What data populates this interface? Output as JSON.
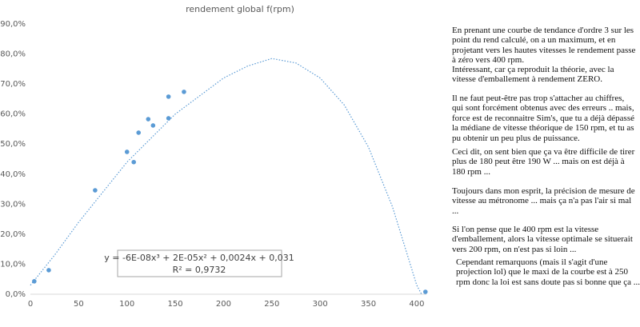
{
  "chart_data": {
    "type": "scatter",
    "title": "rendement global  f(rpm)",
    "xlim": [
      0,
      410
    ],
    "ylim": [
      0,
      90
    ],
    "xticks": [
      0,
      50,
      100,
      150,
      200,
      250,
      300,
      350,
      400
    ],
    "yticks": [
      {
        "value": 0,
        "label": "0,0%"
      },
      {
        "value": 10,
        "label": "10,0%"
      },
      {
        "value": 20,
        "label": "20,0%"
      },
      {
        "value": 30,
        "label": "30,0%"
      },
      {
        "value": 40,
        "label": "40,0%"
      },
      {
        "value": 50,
        "label": "50,0%"
      },
      {
        "value": 60,
        "label": "60,0%"
      },
      {
        "value": 70,
        "label": "70,0%"
      },
      {
        "value": 80,
        "label": "80,0%"
      },
      {
        "value": 90,
        "label": "90,0%"
      }
    ],
    "series": [
      {
        "color": "#5b9bd5",
        "x": [
          4,
          19,
          67,
          100,
          107,
          112,
          122,
          127,
          143,
          143,
          159,
          409
        ],
        "values": [
          4.3,
          8,
          34.6,
          47.4,
          44,
          53.8,
          58.3,
          56.2,
          65.8,
          58.6,
          67.4,
          0.8
        ]
      },
      {
        "color": "#5b9bd5",
        "style": "dotted",
        "x": [
          0,
          25,
          50,
          75,
          100,
          125,
          150,
          175,
          200,
          225,
          250,
          275,
          300,
          325,
          350,
          375,
          400,
          405
        ],
        "values": [
          3,
          13,
          24,
          34,
          44,
          52,
          60,
          66,
          72,
          76,
          78.5,
          77,
          72,
          63,
          49,
          29,
          3,
          0
        ]
      }
    ],
    "annotations": [
      "y = -6E-08x³ + 2E-05x² + 0,0024x + 0,031",
      "R² = 0,9732"
    ]
  },
  "side_text": {
    "paragraphs": [
      "En prenant une courbe de tendance d'ordre 3 sur les point du rend calculé, on a un maximum, et en projetant vers les hautes vitesses le rendement passe à zéro vers 400 rpm.",
      "Intéressant, car ça reproduit la théorie, avec la vitesse d'emballement à rendement ZERO.",
      "Il ne faut peut-être pas trop s'attacher au chiffres, qui sont forcément obtenus avec des erreurs .. mais, force est de reconnaitre Sim's, que tu a déjà dépassé la médiane de vitesse théorique de 150 rpm, et tu as pu obtenir un peu plus de puissance.",
      "Ceci dit, on sent bien que ça va être difficile de tirer plus de 180 peut être 190 W ... mais on est déjà à 180 rpm ...",
      "Toujours dans mon esprit, la précision de mesure de vitesse au métronome ... mais ça n'a pas l'air si mal ...",
      "Si l'on pense que le 400 rpm est la vitesse d'emballement, alors la vitesse optimale se situerait vers 200 rpm, on n'est pas si loin ...",
      "Cependant remarquons (mais il s'agit d'une projection lol) que le maxi de la courbe est à 250 rpm  donc la loi est sans doute pas si bonne que ça ..."
    ]
  }
}
